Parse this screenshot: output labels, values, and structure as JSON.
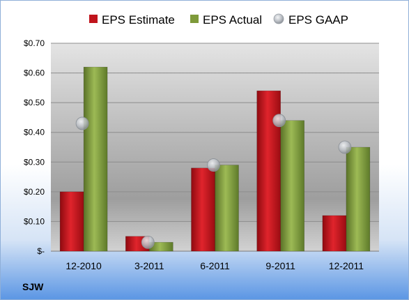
{
  "chart_data": {
    "type": "bar",
    "categories": [
      "12-2010",
      "3-2011",
      "6-2011",
      "9-2011",
      "12-2011"
    ],
    "series": [
      {
        "name": "EPS Estimate",
        "kind": "bar",
        "color": "#C0141C",
        "values": [
          0.2,
          0.05,
          0.28,
          0.54,
          0.12
        ]
      },
      {
        "name": "EPS Actual",
        "kind": "bar",
        "color": "#7E9A3A",
        "values": [
          0.62,
          0.03,
          0.29,
          0.44,
          0.35
        ]
      },
      {
        "name": "EPS GAAP",
        "kind": "marker",
        "color": "#B4B8BE",
        "values": [
          0.43,
          0.03,
          0.29,
          0.44,
          0.35
        ]
      }
    ],
    "y_ticks": [
      0,
      0.1,
      0.2,
      0.3,
      0.4,
      0.5,
      0.6,
      0.7
    ],
    "y_tick_labels": [
      "$-",
      "$0.10",
      "$0.20",
      "$0.30",
      "$0.40",
      "$0.50",
      "$0.60",
      "$0.70"
    ],
    "ylim": [
      0,
      0.7
    ],
    "grid": true,
    "legend_position": "top",
    "ticker": "SJW"
  }
}
